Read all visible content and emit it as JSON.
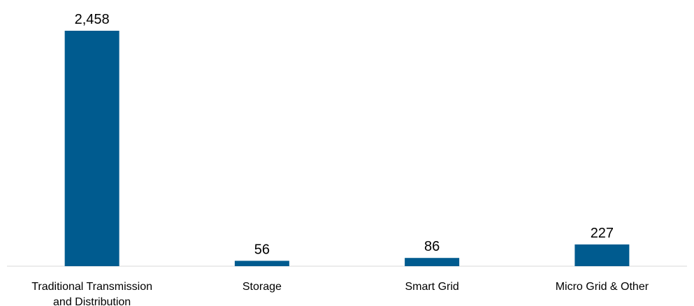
{
  "chart_data": {
    "type": "bar",
    "title": "",
    "xlabel": "",
    "ylabel": "",
    "categories": [
      [
        "Traditional Transmission",
        "and Distribution"
      ],
      [
        "Storage"
      ],
      [
        "Smart Grid"
      ],
      [
        "Micro Grid & Other"
      ]
    ],
    "values": [
      2458,
      56,
      86,
      227
    ],
    "data_labels": [
      "2,458",
      "56",
      "86",
      "227"
    ],
    "ylim": [
      0,
      2458
    ],
    "grid": false,
    "legend": "none",
    "bar_color": "#005b8f",
    "axis_color": "#d9d9d9"
  }
}
